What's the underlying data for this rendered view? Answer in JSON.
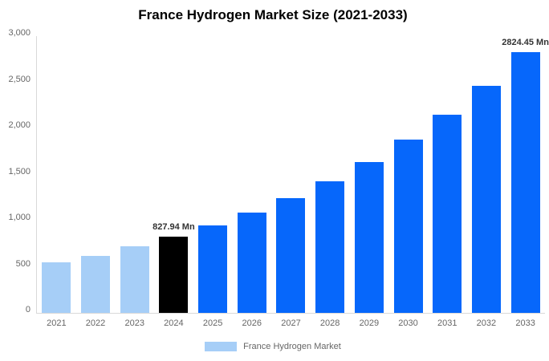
{
  "chart_data": {
    "type": "bar",
    "title": "France Hydrogen Market Size (2021-2033)",
    "categories": [
      "2021",
      "2022",
      "2023",
      "2024",
      "2025",
      "2026",
      "2027",
      "2028",
      "2029",
      "2030",
      "2031",
      "2032",
      "2033"
    ],
    "values": [
      550,
      620,
      720,
      827.94,
      945,
      1085,
      1245,
      1430,
      1635,
      1875,
      2150,
      2465,
      2824.45
    ],
    "unit": "Mn",
    "point_labels": [
      null,
      null,
      null,
      "827.94 Mn",
      null,
      null,
      null,
      null,
      null,
      null,
      null,
      null,
      "2824.45 Mn"
    ],
    "bar_roles": [
      "historical",
      "historical",
      "historical",
      "highlight",
      "forecast",
      "forecast",
      "forecast",
      "forecast",
      "forecast",
      "forecast",
      "forecast",
      "forecast",
      "forecast"
    ],
    "y_ticks": [
      "3,000",
      "2,500",
      "2,000",
      "1,500",
      "1,000",
      "500",
      "0"
    ],
    "ylim": [
      0,
      3000
    ],
    "grid": false,
    "legend": {
      "position": "bottom",
      "items": [
        {
          "label": "France Hydrogen Market",
          "color": "#a6cef7"
        }
      ]
    }
  },
  "colors": {
    "historical": "#a6cef7",
    "highlight": "#000000",
    "forecast": "#0667fb",
    "axis_line": "#d9d9d9",
    "tick_text": "#666666",
    "point_label_text": "#333333"
  }
}
